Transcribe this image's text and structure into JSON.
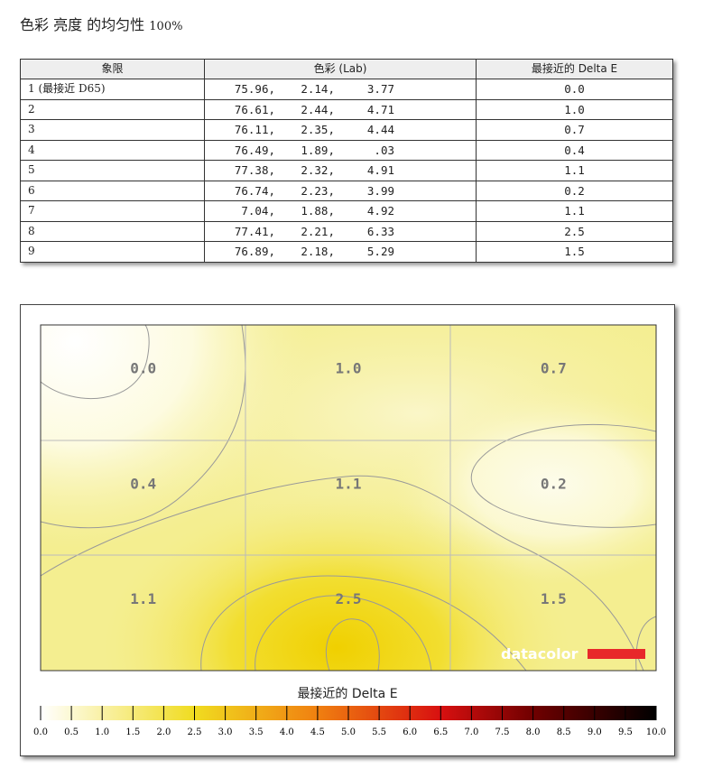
{
  "title": {
    "text": "色彩 亮度 的均匀性",
    "percent": "100%"
  },
  "table": {
    "headers": [
      "象限",
      "色彩 (Lab)",
      "最接近的 Delta E"
    ],
    "rows": [
      {
        "quadrant": "1 (最接近 D65)",
        "L": "75.96,",
        "a": "2.14,",
        "b": "3.77",
        "delta_e": "0.0"
      },
      {
        "quadrant": "2",
        "L": "76.61,",
        "a": "2.44,",
        "b": "4.71",
        "delta_e": "1.0"
      },
      {
        "quadrant": "3",
        "L": "76.11,",
        "a": "2.35,",
        "b": "4.44",
        "delta_e": "0.7"
      },
      {
        "quadrant": "4",
        "L": "76.49,",
        "a": "1.89,",
        "b": ".03",
        "delta_e": "0.4"
      },
      {
        "quadrant": "5",
        "L": "77.38,",
        "a": "2.32,",
        "b": "4.91",
        "delta_e": "1.1"
      },
      {
        "quadrant": "6",
        "L": "76.74,",
        "a": "2.23,",
        "b": "3.99",
        "delta_e": "0.2"
      },
      {
        "quadrant": "7",
        "L": "7.04,",
        "a": "1.88,",
        "b": "4.92",
        "delta_e": "1.1"
      },
      {
        "quadrant": "8",
        "L": "77.41,",
        "a": "2.21,",
        "b": "6.33",
        "delta_e": "2.5"
      },
      {
        "quadrant": "9",
        "L": "76.89,",
        "a": "2.18,",
        "b": "5.29",
        "delta_e": "1.5"
      }
    ]
  },
  "chart_data": {
    "type": "heatmap",
    "grid": [
      [
        "0.0",
        "1.0",
        "0.7"
      ],
      [
        "0.4",
        "1.1",
        "0.2"
      ],
      [
        "1.1",
        "2.5",
        "1.5"
      ]
    ],
    "values": [
      [
        0.0,
        1.0,
        0.7
      ],
      [
        0.4,
        1.1,
        0.2
      ],
      [
        1.1,
        2.5,
        1.5
      ]
    ],
    "colorbar": {
      "title": "最接近的 Delta E",
      "range": [
        0,
        10
      ],
      "ticks": [
        "0.0",
        "0.5",
        "1.0",
        "1.5",
        "2.0",
        "2.5",
        "3.0",
        "3.5",
        "4.0",
        "4.5",
        "5.0",
        "5.5",
        "6.0",
        "6.5",
        "7.0",
        "7.5",
        "8.0",
        "8.5",
        "9.0",
        "9.5",
        "10.0"
      ],
      "colors": {
        "0": "#ffffff",
        "2.5": "#f0dc20",
        "4.5": "#f08010",
        "6.5": "#d81010",
        "8": "#700000",
        "10": "#000000"
      }
    },
    "logo": "datacolor",
    "logo_color": "#e8282a"
  }
}
